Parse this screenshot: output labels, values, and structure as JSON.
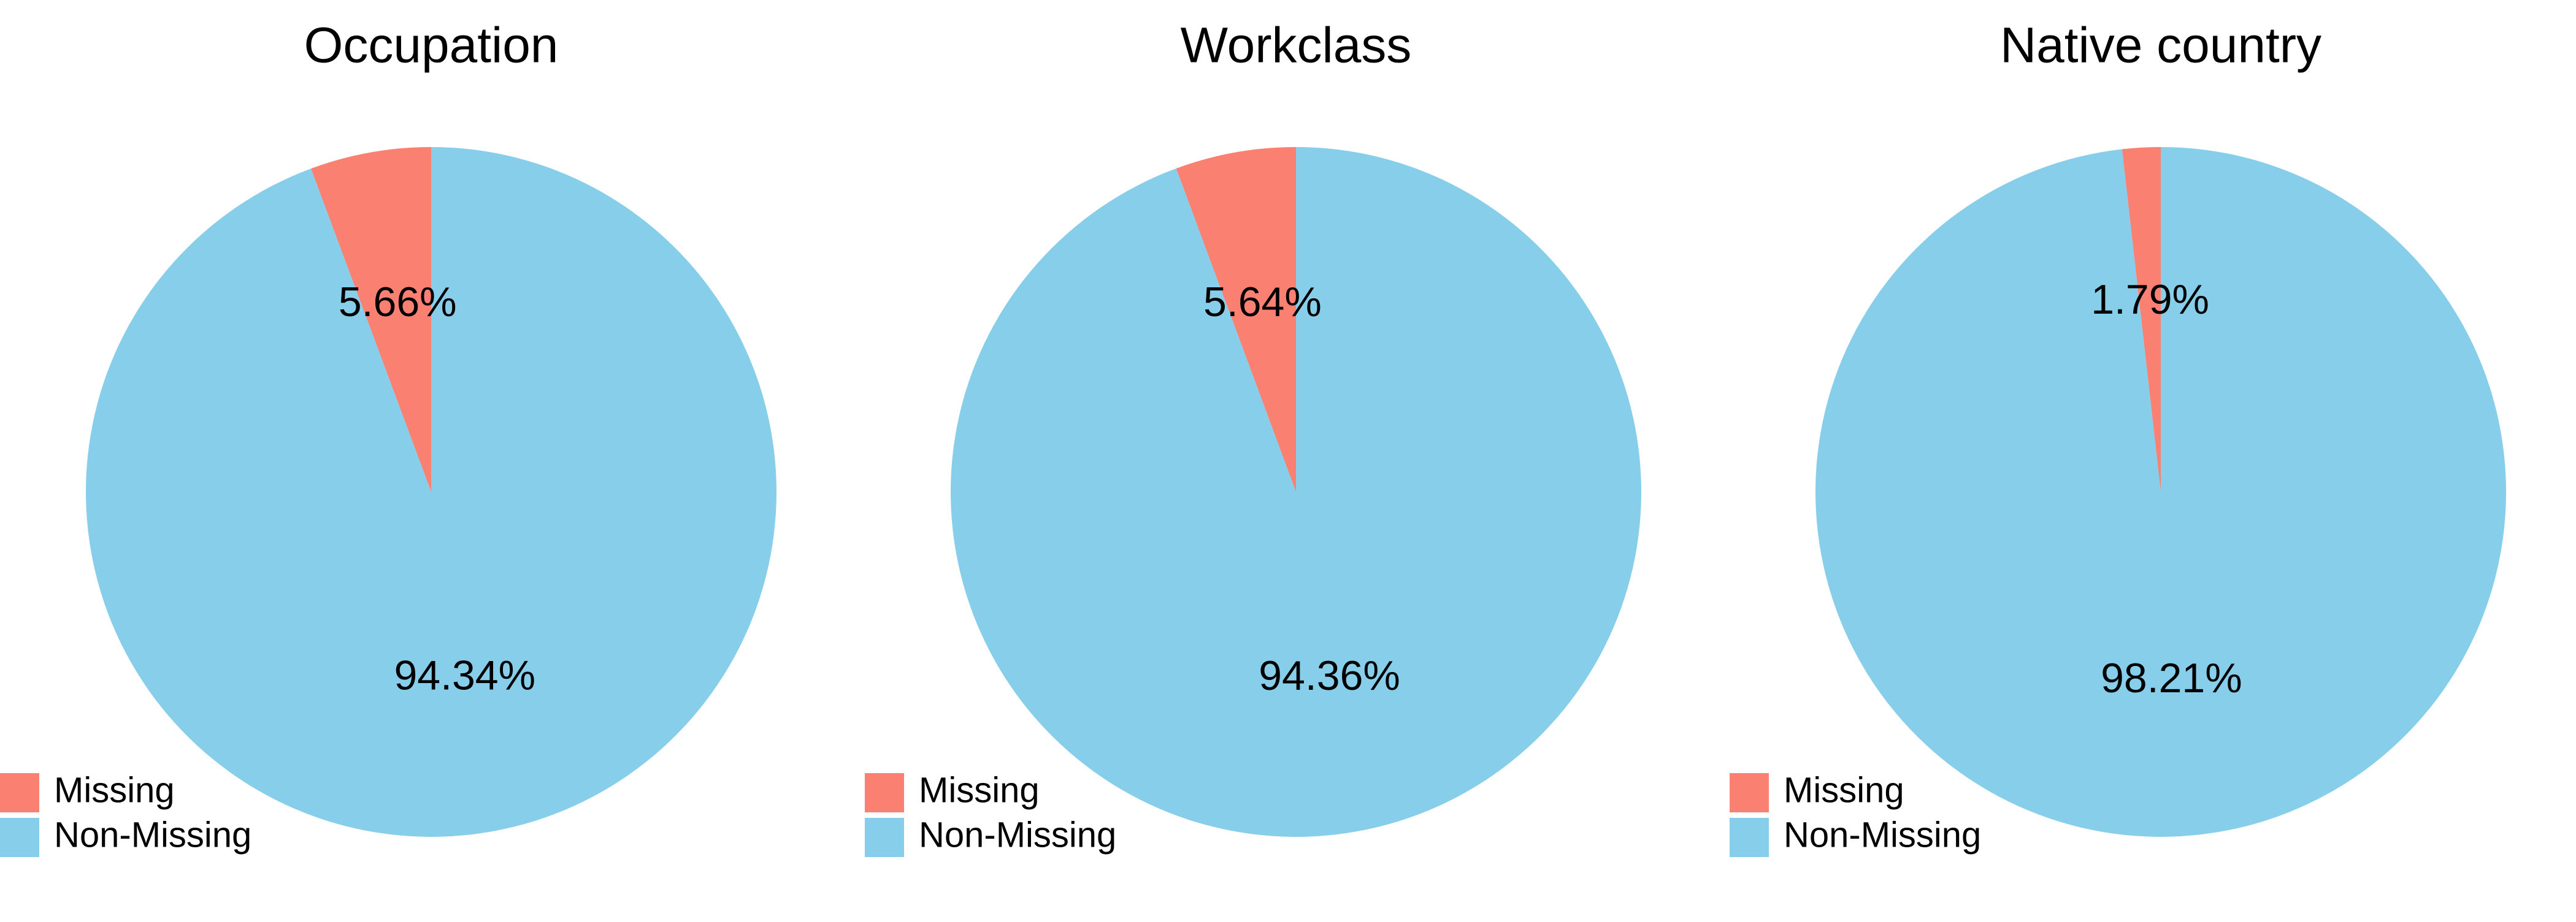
{
  "chart_data": [
    {
      "type": "pie",
      "title": "Occupation",
      "labels": [
        "Missing",
        "Non-Missing"
      ],
      "values": [
        5.66,
        94.34
      ],
      "value_labels": [
        "5.66%",
        "94.34%"
      ],
      "colors": [
        "#FA8072",
        "#87CEEB"
      ],
      "start_angle": "top, counterclockwise",
      "legend": {
        "placement": "bottom-left",
        "entries": [
          "Missing",
          "Non-Missing"
        ]
      }
    },
    {
      "type": "pie",
      "title": "Workclass",
      "labels": [
        "Missing",
        "Non-Missing"
      ],
      "values": [
        5.64,
        94.36
      ],
      "value_labels": [
        "5.64%",
        "94.36%"
      ],
      "colors": [
        "#FA8072",
        "#87CEEB"
      ],
      "start_angle": "top, counterclockwise",
      "legend": {
        "placement": "bottom-left",
        "entries": [
          "Missing",
          "Non-Missing"
        ]
      }
    },
    {
      "type": "pie",
      "title": "Native country",
      "labels": [
        "Missing",
        "Non-Missing"
      ],
      "values": [
        1.79,
        98.21
      ],
      "value_labels": [
        "1.79%",
        "98.21%"
      ],
      "colors": [
        "#FA8072",
        "#87CEEB"
      ],
      "start_angle": "top, counterclockwise",
      "legend": {
        "placement": "bottom-left",
        "entries": [
          "Missing",
          "Non-Missing"
        ]
      }
    }
  ]
}
